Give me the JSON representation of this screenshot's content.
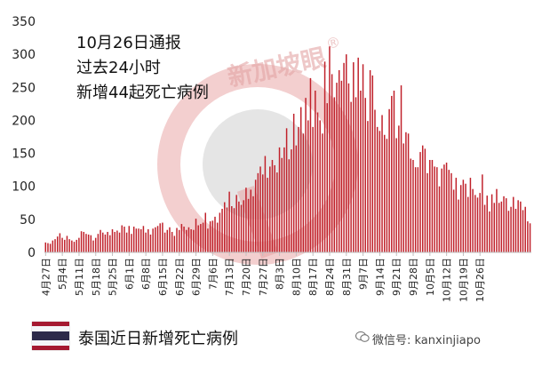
{
  "annotation": {
    "line1": "10月26日通报",
    "line2": "过去24小时",
    "line3": "新增44起死亡病例"
  },
  "watermark": {
    "text": "新加坡眼",
    "registered": "®"
  },
  "footer": {
    "title": "泰国近日新增死亡病例",
    "wechat_label": "微信号: kanxinjiapo",
    "flag_colors": [
      "#A51931",
      "#F4F5F8",
      "#2D2A4A",
      "#F4F5F8",
      "#A51931"
    ]
  },
  "colors": {
    "bar": "#C0202A",
    "axis": "#BFBFBF",
    "watermark": "#E8A0A0"
  },
  "chart_data": {
    "type": "bar",
    "ylim": [
      0,
      350
    ],
    "yticks": [
      0,
      50,
      100,
      150,
      200,
      250,
      300,
      350
    ],
    "ytick_labels": [
      "0",
      "50",
      "100",
      "150",
      "200",
      "250",
      "300",
      "350"
    ],
    "tick_dates": [
      "4月27日",
      "5月4日",
      "5月11日",
      "5月18日",
      "5月25日",
      "6月1日",
      "6月8日",
      "6月15日",
      "6月22日",
      "6月29日",
      "7月6日",
      "7月13日",
      "7月20日",
      "7月27日",
      "8月3日",
      "8月10日",
      "8月17日",
      "8月24日",
      "8月31日",
      "9月7日",
      "9月14日",
      "9月21日",
      "9月28日",
      "10月5日",
      "10月12日",
      "10月19日",
      "10月26日"
    ],
    "start_date": "4月27日",
    "end_date": "10月26日",
    "values": [
      15,
      14,
      13,
      18,
      20,
      24,
      29,
      22,
      19,
      25,
      20,
      18,
      16,
      19,
      22,
      32,
      31,
      28,
      27,
      26,
      18,
      22,
      28,
      34,
      30,
      27,
      31,
      26,
      35,
      31,
      33,
      30,
      41,
      39,
      30,
      40,
      28,
      39,
      36,
      36,
      35,
      40,
      30,
      35,
      27,
      36,
      38,
      40,
      44,
      45,
      30,
      34,
      38,
      31,
      25,
      37,
      34,
      43,
      39,
      34,
      38,
      35,
      34,
      51,
      41,
      43,
      45,
      60,
      36,
      47,
      48,
      54,
      45,
      60,
      66,
      76,
      68,
      92,
      70,
      67,
      87,
      77,
      72,
      79,
      98,
      81,
      95,
      85,
      110,
      120,
      130,
      118,
      146,
      113,
      130,
      140,
      132,
      121,
      159,
      143,
      159,
      188,
      141,
      156,
      210,
      162,
      190,
      220,
      180,
      234,
      200,
      264,
      190,
      245,
      212,
      200,
      180,
      289,
      226,
      312,
      270,
      235,
      257,
      276,
      260,
      287,
      300,
      256,
      228,
      288,
      235,
      295,
      245,
      285,
      234,
      199,
      276,
      268,
      216,
      190,
      184,
      208,
      178,
      172,
      217,
      237,
      245,
      173,
      192,
      253,
      165,
      182,
      180,
      142,
      140,
      129,
      129,
      152,
      162,
      157,
      120,
      140,
      140,
      130,
      129,
      100,
      127,
      133,
      136,
      125,
      120,
      95,
      113,
      80,
      102,
      110,
      104,
      84,
      113,
      96,
      87,
      83,
      90,
      118,
      72,
      86,
      62,
      88,
      75,
      96,
      75,
      77,
      85,
      82,
      63,
      69,
      84,
      66,
      79,
      77,
      64,
      69,
      47,
      44
    ]
  }
}
